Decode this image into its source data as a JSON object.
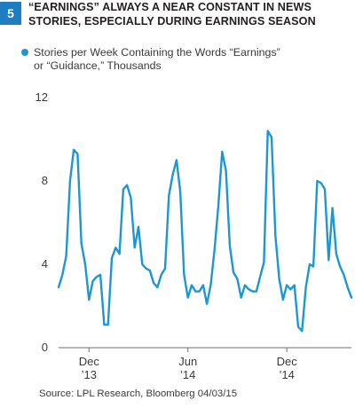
{
  "figure": {
    "number": "5",
    "title_lines": [
      "“Earnings” Always a Near Constant in News",
      "Stories, Especially During Earnings Season"
    ],
    "source": "Source: LPL Research, Bloomberg   04/03/15"
  },
  "colors": {
    "accent": "#1f7dc1",
    "series": "#1b97d6"
  },
  "chart_data": {
    "type": "line",
    "title": "“Earnings” Always a Near Constant in News Stories, Especially During Earnings Season",
    "legend_lines": [
      "Stories per Week Containing the Words “Earnings”",
      "or “Guidance,” Thousands"
    ],
    "xlabel": "",
    "ylabel": "",
    "ylim": [
      0,
      12
    ],
    "yticks": [
      0,
      4,
      8,
      12
    ],
    "grid": false,
    "legend_position": "top-left",
    "x_ticks": [
      {
        "week": 8,
        "label_top": "Dec",
        "label_bottom": "’13"
      },
      {
        "week": 34,
        "label_top": "Jun",
        "label_bottom": "’14"
      },
      {
        "week": 60,
        "label_top": "Dec",
        "label_bottom": "’14"
      }
    ],
    "series": [
      {
        "name": "Stories per Week Containing the Words “Earnings” or “Guidance,” Thousands",
        "values": [
          2.9,
          3.5,
          4.4,
          8.0,
          9.5,
          9.3,
          5.0,
          4.0,
          2.3,
          3.2,
          3.4,
          3.5,
          1.1,
          1.1,
          4.3,
          4.8,
          4.5,
          7.6,
          7.8,
          7.2,
          4.8,
          5.8,
          4.0,
          3.8,
          3.7,
          3.1,
          2.9,
          3.5,
          3.8,
          7.3,
          8.3,
          9.0,
          7.5,
          3.5,
          2.4,
          3.0,
          2.7,
          2.7,
          3.0,
          2.1,
          3.0,
          4.7,
          6.8,
          9.4,
          8.5,
          4.9,
          3.6,
          3.3,
          2.4,
          3.0,
          2.8,
          2.7,
          2.7,
          3.4,
          4.1,
          10.4,
          10.1,
          5.4,
          3.3,
          2.3,
          3.0,
          2.8,
          3.0,
          1.0,
          0.8,
          2.9,
          4.0,
          3.9,
          8.0,
          7.9,
          7.6,
          4.2,
          6.7,
          4.5,
          3.9,
          3.5,
          2.9,
          2.4
        ]
      }
    ]
  }
}
